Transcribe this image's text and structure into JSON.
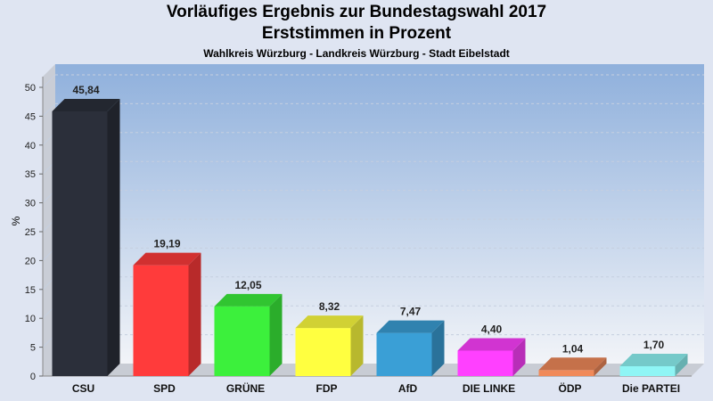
{
  "title": "Vorläufiges Ergebnis zur Bundestagswahl 2017",
  "subtitle": "Erststimmen in Prozent",
  "caption": "Wahlkreis Würzburg - Landkreis Würzburg - Stadt Eibelstadt",
  "chart_data": {
    "type": "bar",
    "title": "Vorläufiges Ergebnis zur Bundestagswahl 2017",
    "subtitle": "Erststimmen in Prozent",
    "xlabel": "",
    "ylabel": "%",
    "ylim": [
      0,
      50
    ],
    "yticks": [
      0,
      5,
      10,
      15,
      20,
      25,
      30,
      35,
      40,
      45,
      50
    ],
    "grid": true,
    "categories": [
      "CSU",
      "SPD",
      "GRÜNE",
      "FDP",
      "AfD",
      "DIE LINKE",
      "ÖDP",
      "Die PARTEI"
    ],
    "values": [
      45.84,
      19.19,
      12.05,
      8.32,
      7.47,
      4.4,
      1.04,
      1.7
    ],
    "value_labels": [
      "45,84",
      "19,19",
      "12,05",
      "8,32",
      "7,47",
      "4,40",
      "1,04",
      "1,70"
    ],
    "colors": [
      "#2b2f3a",
      "#ff3b3b",
      "#3cf03c",
      "#ffff40",
      "#3a9fd6",
      "#ff40ff",
      "#f08a5a",
      "#8ff5f5"
    ]
  }
}
